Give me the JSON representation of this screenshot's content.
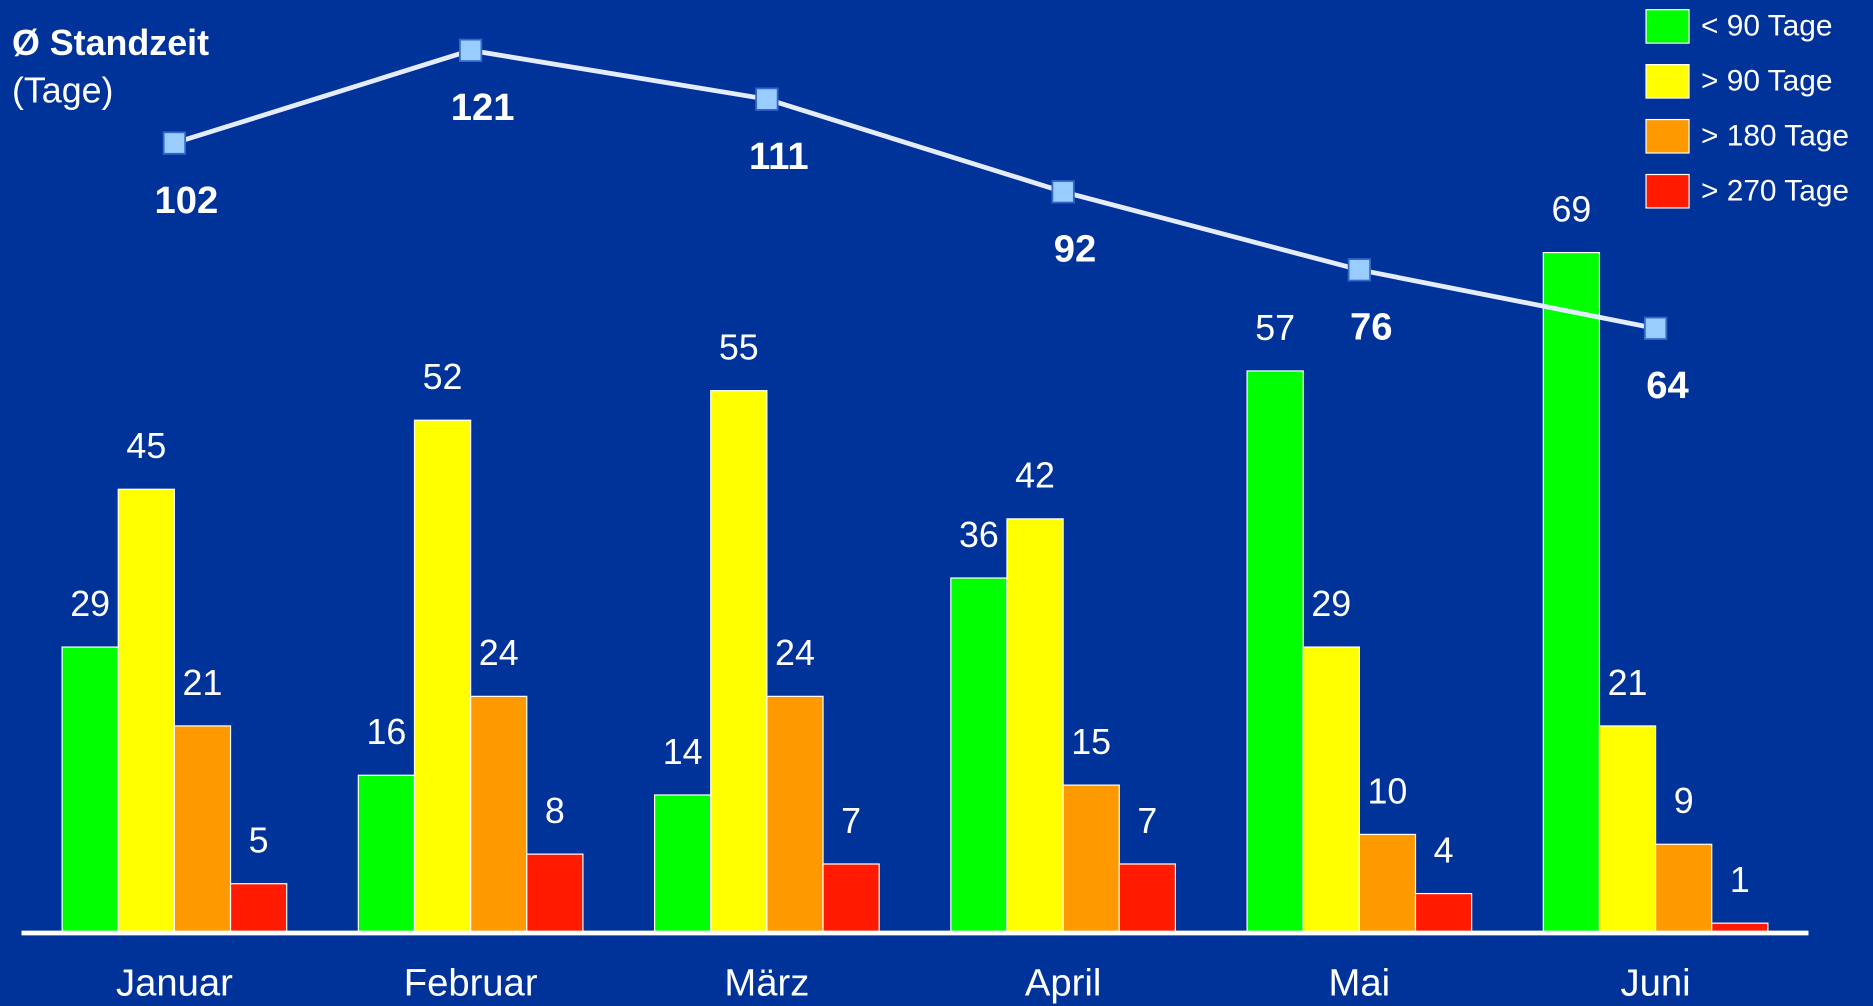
{
  "chart_data": {
    "type": "bar",
    "title": "Ø Standzeit",
    "subtitle": "(Tage)",
    "categories": [
      "Januar",
      "Februar",
      "März",
      "April",
      "Mai",
      "Juni"
    ],
    "series": [
      {
        "name": "< 90 Tage",
        "color": "#00ff00",
        "values": [
          29,
          16,
          14,
          36,
          57,
          69
        ]
      },
      {
        "name": "> 90 Tage",
        "color": "#ffff00",
        "values": [
          45,
          52,
          55,
          42,
          29,
          21
        ]
      },
      {
        "name": "> 180 Tage",
        "color": "#ff9900",
        "values": [
          21,
          24,
          24,
          15,
          10,
          9
        ]
      },
      {
        "name": "> 270 Tage",
        "color": "#ff1a00",
        "values": [
          5,
          8,
          7,
          7,
          4,
          1
        ]
      },
      {
        "type": "line",
        "axis": "y2",
        "color": "#e6ecff",
        "values": [
          102,
          121,
          111,
          92,
          76,
          64
        ]
      }
    ],
    "ylim": [
      0,
      90
    ],
    "y2lim": [
      -60,
      122
    ],
    "legend": "top-right"
  }
}
